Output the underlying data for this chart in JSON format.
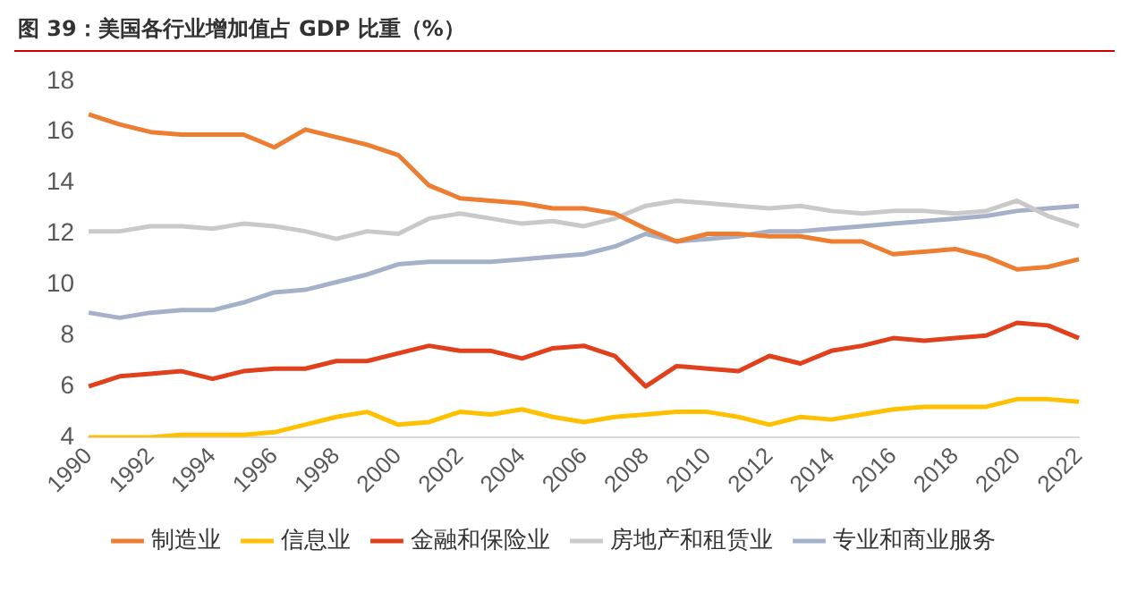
{
  "chart_data": {
    "type": "line",
    "title": "图 39：美国各行业增加值占 GDP 比重（%）",
    "categories": [
      "1990",
      null,
      "1992",
      null,
      "1994",
      null,
      "1996",
      null,
      "1998",
      null,
      "2000",
      null,
      "2002",
      null,
      "2004",
      null,
      "2006",
      null,
      "2008",
      null,
      "2010",
      null,
      "2012",
      null,
      "2014",
      null,
      "2016",
      null,
      "2018",
      null,
      "2020",
      null,
      "2022"
    ],
    "series": [
      {
        "name": "制造业",
        "color": "#ed7d31",
        "values": [
          16.7,
          16.3,
          16.0,
          15.9,
          15.9,
          15.9,
          15.4,
          16.1,
          15.8,
          15.5,
          15.1,
          13.9,
          13.4,
          13.3,
          13.2,
          13.0,
          13.0,
          12.8,
          12.2,
          11.7,
          12.0,
          12.0,
          11.9,
          11.9,
          11.7,
          11.7,
          11.2,
          11.3,
          11.4,
          11.1,
          10.6,
          10.7,
          11.0
        ]
      },
      {
        "name": "信息业",
        "color": "#ffc000",
        "values": [
          4.0,
          4.0,
          4.0,
          4.1,
          4.1,
          4.1,
          4.2,
          4.5,
          4.8,
          5.0,
          4.5,
          4.6,
          5.0,
          4.9,
          5.1,
          4.8,
          4.6,
          4.8,
          4.9,
          5.0,
          5.0,
          4.8,
          4.5,
          4.8,
          4.7,
          4.9,
          5.1,
          5.2,
          5.2,
          5.2,
          5.5,
          5.5,
          5.4
        ]
      },
      {
        "name": "金融和保险业",
        "color": "#e0401c",
        "values": [
          6.0,
          6.4,
          6.5,
          6.6,
          6.3,
          6.6,
          6.7,
          6.7,
          7.0,
          7.0,
          7.3,
          7.6,
          7.4,
          7.4,
          7.1,
          7.5,
          7.6,
          7.2,
          6.0,
          6.8,
          6.7,
          6.6,
          7.2,
          6.9,
          7.4,
          7.6,
          7.9,
          7.8,
          7.9,
          8.0,
          8.5,
          8.4,
          7.9
        ]
      },
      {
        "name": "房地产和租赁业",
        "color": "#c9c9c9",
        "values": [
          12.1,
          12.1,
          12.3,
          12.3,
          12.2,
          12.4,
          12.3,
          12.1,
          11.8,
          12.1,
          12.0,
          12.6,
          12.8,
          12.6,
          12.4,
          12.5,
          12.3,
          12.6,
          13.1,
          13.3,
          13.2,
          13.1,
          13.0,
          13.1,
          12.9,
          12.8,
          12.9,
          12.9,
          12.8,
          12.9,
          13.3,
          12.7,
          12.3
        ]
      },
      {
        "name": "专业和商业服务",
        "color": "#a5b0c9",
        "values": [
          8.9,
          8.7,
          8.9,
          9.0,
          9.0,
          9.3,
          9.7,
          9.8,
          10.1,
          10.4,
          10.8,
          10.9,
          10.9,
          10.9,
          11.0,
          11.1,
          11.2,
          11.5,
          12.0,
          11.7,
          11.8,
          11.9,
          12.1,
          12.1,
          12.2,
          12.3,
          12.4,
          12.5,
          12.6,
          12.7,
          12.9,
          13.0,
          13.1
        ]
      }
    ],
    "ylim": [
      4,
      18
    ],
    "yticks": [
      4,
      6,
      8,
      10,
      12,
      14,
      16,
      18
    ],
    "grid": false,
    "legend": "bottom",
    "marker": "none",
    "line_style": "solid"
  }
}
